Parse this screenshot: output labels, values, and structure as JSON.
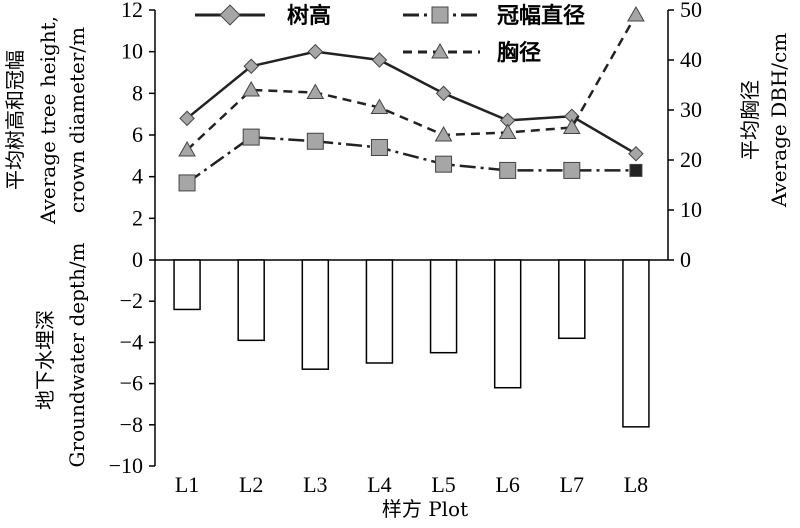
{
  "chart_data": {
    "type": "line+bar",
    "categories": [
      "L1",
      "L2",
      "L3",
      "L4",
      "L5",
      "L6",
      "L7",
      "L8"
    ],
    "xlabel": "样方 Plot",
    "series": [
      {
        "name": "树高",
        "axis": "left",
        "kind": "line",
        "values": [
          6.8,
          9.3,
          10.0,
          9.6,
          8.0,
          6.7,
          6.9,
          5.1
        ]
      },
      {
        "name": "冠幅直径",
        "axis": "left",
        "kind": "line",
        "values": [
          3.7,
          5.9,
          5.7,
          5.4,
          4.6,
          4.3,
          4.3,
          4.3
        ]
      },
      {
        "name": "胸径",
        "axis": "right",
        "kind": "line",
        "values": [
          22,
          34,
          33.5,
          30.5,
          25,
          25.5,
          26.5,
          49
        ]
      },
      {
        "name": "",
        "axis": "left",
        "kind": "bar",
        "values": [
          -2.4,
          -3.9,
          -5.3,
          -5.0,
          -4.5,
          -6.2,
          -3.8,
          -8.1
        ]
      }
    ],
    "left_axis": {
      "ylim": [
        -10,
        12
      ],
      "ticks": [
        "−10",
        "−8",
        "−6",
        "−4",
        "−2",
        "0",
        "2",
        "4",
        "6",
        "8",
        "10",
        "12"
      ],
      "upper_label_lines": [
        "平均树高和冠幅",
        "Average tree height,",
        "crown diameter/m"
      ],
      "lower_label_lines": [
        "地下水埋深",
        "Groundwater depth/m"
      ]
    },
    "right_axis": {
      "ylim": [
        0,
        50
      ],
      "ticks": [
        "0",
        "10",
        "20",
        "30",
        "40",
        "50"
      ],
      "label_lines": [
        "平均胸径",
        "Average DBH/cm"
      ]
    },
    "legend": {
      "placement": "top",
      "items": [
        "树高",
        "冠幅直径",
        "胸径"
      ]
    }
  }
}
